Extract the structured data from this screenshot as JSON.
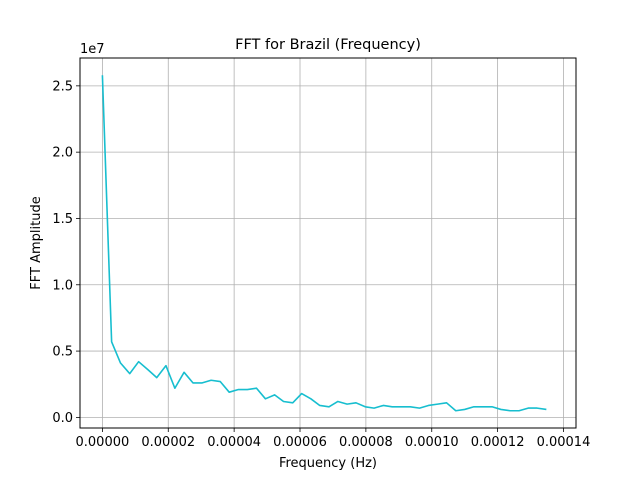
{
  "chart_data": {
    "type": "line",
    "title": "FFT for Brazil (Frequency)",
    "xlabel": "Frequency (Hz)",
    "ylabel": "FFT Amplitude",
    "offset_label": "1e7",
    "grid": true,
    "xlim": [
      -6.8e-06,
      0.0001438
    ],
    "ylim": [
      -0.8,
      27.1
    ],
    "x_ticks": [
      0,
      2e-05,
      4e-05,
      6e-05,
      8e-05,
      0.0001,
      0.00012,
      0.00014
    ],
    "x_tick_labels": [
      "0.00000",
      "0.00002",
      "0.00004",
      "0.00006",
      "0.00008",
      "0.00010",
      "0.00012",
      "0.00014"
    ],
    "y_ticks": [
      0,
      5,
      10,
      15,
      20,
      25
    ],
    "y_tick_labels": [
      "0.0",
      "0.5",
      "1.0",
      "1.5",
      "2.0",
      "2.5"
    ],
    "y_unit": "x 1e6",
    "line_color": "#17becf",
    "series": [
      {
        "x": [
          0,
          2.8e-06,
          5.5e-06,
          8.3e-06,
          1.1e-05,
          1.38e-05,
          1.65e-05,
          1.93e-05,
          2.2e-05,
          2.48e-05,
          2.75e-05,
          3.03e-05,
          3.3e-05,
          3.58e-05,
          3.85e-05,
          4.13e-05,
          4.4e-05,
          4.68e-05,
          4.95e-05,
          5.23e-05,
          5.5e-05,
          5.78e-05,
          6.05e-05,
          6.33e-05,
          6.6e-05,
          6.88e-05,
          7.15e-05,
          7.43e-05,
          7.7e-05,
          7.98e-05,
          8.25e-05,
          8.53e-05,
          8.8e-05,
          9.08e-05,
          9.35e-05,
          9.63e-05,
          9.9e-05,
          0.0001018,
          0.0001045,
          0.0001073,
          0.00011,
          0.0001128,
          0.0001155,
          0.0001183,
          0.000121,
          0.0001238,
          0.0001265,
          0.0001293,
          0.000132,
          0.0001348
        ],
        "values": [
          25.8,
          5.7,
          4.1,
          3.3,
          4.2,
          3.6,
          3.0,
          3.9,
          2.2,
          3.4,
          2.6,
          2.6,
          2.8,
          2.7,
          1.9,
          2.1,
          2.1,
          2.2,
          1.4,
          1.7,
          1.2,
          1.1,
          1.8,
          1.4,
          0.9,
          0.8,
          1.2,
          1.0,
          1.1,
          0.8,
          0.7,
          0.9,
          0.8,
          0.8,
          0.8,
          0.7,
          0.9,
          1.0,
          1.1,
          0.5,
          0.6,
          0.8,
          0.8,
          0.8,
          0.6,
          0.5,
          0.5,
          0.7,
          0.7,
          0.6
        ]
      }
    ]
  }
}
